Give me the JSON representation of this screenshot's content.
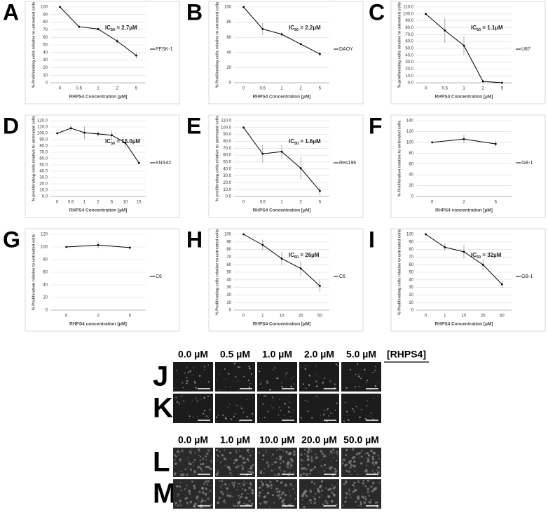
{
  "chart_data": [
    {
      "type": "line",
      "panel": "A",
      "title_parts": [
        "IC",
        "50",
        " = 2.7µM"
      ],
      "y_label": "% Proliferating cells relative to untreated cells",
      "x_label": "RHPS4 Concentration [µM]",
      "categories": [
        "0",
        "0.5",
        "1",
        "2",
        "5"
      ],
      "series": [
        {
          "name": "PFSK-1",
          "color": "#000000",
          "values": [
            100,
            74,
            71,
            55,
            36
          ],
          "errors": [
            0,
            0,
            0,
            4,
            4
          ]
        }
      ],
      "ylim": [
        0,
        100
      ],
      "yticks": [
        0,
        10,
        20,
        30,
        40,
        50,
        60,
        70,
        80,
        90,
        100
      ],
      "grid": true
    },
    {
      "type": "line",
      "panel": "B",
      "title_parts": [
        "IC",
        "50",
        " = 2.2µM"
      ],
      "y_label": "% Proliferating cells relative to untreated cells",
      "x_label": "RHPS4  Concentration [µM]",
      "categories": [
        "0",
        "0.5",
        "1",
        "2",
        "5"
      ],
      "series": [
        {
          "name": "DAOY",
          "color": "#000000",
          "values": [
            100,
            71,
            64,
            51,
            38
          ],
          "errors": [
            0,
            8,
            3,
            0,
            3
          ]
        }
      ],
      "ylim": [
        0,
        100
      ],
      "yticks": [
        0,
        20,
        40,
        60,
        80,
        100
      ],
      "grid": true
    },
    {
      "type": "line",
      "panel": "C",
      "title_parts": [
        "IC",
        "50",
        " = 1.1µM"
      ],
      "y_label": "% proliferating cells relative to untreated cells",
      "x_label": "RHPS4 Concentration [µM]",
      "categories": [
        "0",
        "0.5",
        "1",
        "2",
        "5"
      ],
      "series": [
        {
          "name": "U87",
          "color": "#000000",
          "values": [
            100,
            76,
            54,
            2,
            0
          ],
          "errors": [
            0,
            18,
            14,
            2,
            1
          ]
        }
      ],
      "ylim": [
        0,
        110
      ],
      "yticks": [
        {
          "value": 0,
          "label": "0.0"
        },
        {
          "value": 10,
          "label": "10.0"
        },
        {
          "value": 20,
          "label": "20.0"
        },
        {
          "value": 30,
          "label": "30.0"
        },
        {
          "value": 40,
          "label": "40.0"
        },
        {
          "value": 50,
          "label": "50.0"
        },
        {
          "value": 60,
          "label": "60.0"
        },
        {
          "value": 70,
          "label": "70.0"
        },
        {
          "value": 80,
          "label": "80.0"
        },
        {
          "value": 90,
          "label": "90.0"
        },
        {
          "value": 100,
          "label": "100.0"
        },
        {
          "value": 110,
          "label": "110.0"
        }
      ],
      "grid": true
    },
    {
      "type": "line",
      "panel": "D",
      "title_parts": [
        "IC",
        "50",
        " = 15.0µM"
      ],
      "y_label": "% proliferating cells relative to untreated cells",
      "x_label": "RHPS4 Concentration [µM]",
      "categories": [
        "0",
        "0.5",
        "1",
        "2",
        "5",
        "10",
        "15"
      ],
      "series": [
        {
          "name": "KNS42",
          "color": "#000000",
          "values": [
            100,
            108,
            101,
            99,
            97,
            85,
            53
          ],
          "errors": [
            0,
            5,
            10,
            4,
            8,
            8,
            0
          ]
        }
      ],
      "ylim": [
        0,
        120
      ],
      "yticks": [
        {
          "value": 0,
          "label": "0.0"
        },
        {
          "value": 10,
          "label": "10.0"
        },
        {
          "value": 20,
          "label": "20.0"
        },
        {
          "value": 30,
          "label": "30.0"
        },
        {
          "value": 40,
          "label": "40.0"
        },
        {
          "value": 50,
          "label": "50.0"
        },
        {
          "value": 60,
          "label": "60.0"
        },
        {
          "value": 70,
          "label": "70.0"
        },
        {
          "value": 80,
          "label": "80.0"
        },
        {
          "value": 90,
          "label": "90.0"
        },
        {
          "value": 100,
          "label": "100.0"
        },
        {
          "value": 110,
          "label": "110.0"
        },
        {
          "value": 120,
          "label": "120.0"
        }
      ],
      "grid": true
    },
    {
      "type": "line",
      "panel": "E",
      "title_parts": [
        "IC",
        "50",
        " = 1.6µM"
      ],
      "y_label": "% proliferating cells relative to untreated cells",
      "x_label": "RHPS4 Concentration [µM]",
      "categories": [
        "0",
        "0.5",
        "1",
        "2",
        "5"
      ],
      "series": [
        {
          "name": "Res196",
          "color": "#000000",
          "values": [
            100,
            62,
            65,
            41,
            8
          ],
          "errors": [
            0,
            13,
            10,
            16,
            6
          ]
        }
      ],
      "ylim": [
        0,
        110
      ],
      "yticks": [
        {
          "value": 0,
          "label": "0.0"
        },
        {
          "value": 10,
          "label": "10.0"
        },
        {
          "value": 20,
          "label": "20.0"
        },
        {
          "value": 30,
          "label": "30.0"
        },
        {
          "value": 40,
          "label": "40.0"
        },
        {
          "value": 50,
          "label": "50.0"
        },
        {
          "value": 60,
          "label": "60.0"
        },
        {
          "value": 70,
          "label": "70.0"
        },
        {
          "value": 80,
          "label": "80.0"
        },
        {
          "value": 90,
          "label": "90.0"
        },
        {
          "value": 100,
          "label": "100.0"
        },
        {
          "value": 110,
          "label": "110.0"
        }
      ],
      "grid": true
    },
    {
      "type": "line",
      "panel": "F",
      "y_label": "% Proliferation relative to untreated cells",
      "x_label": "RHPS4 concentration [µM]",
      "categories": [
        "0",
        "2",
        "5"
      ],
      "series": [
        {
          "name": "GB-1",
          "color": "#000000",
          "values": [
            100,
            106,
            97
          ],
          "errors": [
            0,
            8,
            6
          ]
        }
      ],
      "ylim": [
        0,
        140
      ],
      "yticks": [
        0,
        20,
        40,
        60,
        80,
        100,
        120,
        140
      ],
      "grid": true
    },
    {
      "type": "line",
      "panel": "G",
      "y_label": "% Proliferation relative to untreated cells",
      "x_label": "RHPS4 concentration [µM]",
      "categories": [
        "0",
        "2",
        "5"
      ],
      "series": [
        {
          "name": "C6",
          "color": "#000000",
          "values": [
            100,
            103,
            99
          ],
          "errors": [
            0,
            5,
            3
          ]
        }
      ],
      "ylim": [
        0,
        120
      ],
      "yticks": [
        0,
        20,
        40,
        60,
        80,
        100,
        120
      ],
      "grid": true
    },
    {
      "type": "line",
      "panel": "H",
      "title_parts": [
        "IC",
        "50",
        " = 26µM"
      ],
      "y_label": "% Proliferating cells relative to untreated cells",
      "x_label": "RHPS4 Concentration [µM]",
      "categories": [
        "0",
        "1",
        "10",
        "20",
        "50"
      ],
      "series": [
        {
          "name": "C6",
          "color": "#000000",
          "values": [
            100,
            86,
            68,
            55,
            32
          ],
          "errors": [
            0,
            7,
            9,
            10,
            8
          ]
        }
      ],
      "ylim": [
        0,
        100
      ],
      "yticks": [
        0,
        10,
        20,
        30,
        40,
        50,
        60,
        70,
        80,
        90,
        100
      ],
      "grid": true
    },
    {
      "type": "line",
      "panel": "I",
      "title_parts": [
        "IC",
        "50",
        " = 32µM"
      ],
      "y_label": "% Proliferating cells relative to untreated cells",
      "x_label": "RHPS4 Concentration [µM]",
      "categories": [
        "0",
        "1",
        "10",
        "20",
        "50"
      ],
      "series": [
        {
          "name": "GB-1",
          "color": "#000000",
          "values": [
            100,
            83,
            77,
            60,
            34
          ],
          "errors": [
            0,
            5,
            9,
            7,
            5
          ]
        }
      ],
      "ylim": [
        0,
        100
      ],
      "yticks": [
        0,
        10,
        20,
        30,
        40,
        50,
        60,
        70,
        80,
        90,
        100
      ],
      "grid": true
    }
  ],
  "micrographs": {
    "label": "[RHPS4]",
    "groups": [
      {
        "columns": [
          "0.0 µM",
          "0.5 µM",
          "1.0 µM",
          "2.0 µM",
          "5.0 µM"
        ],
        "rows": [
          "J",
          "K"
        ]
      },
      {
        "columns": [
          "0.0 µM",
          "1.0 µM",
          "10.0 µM",
          "20.0 µM",
          "50.0 µM"
        ],
        "rows": [
          "L",
          "M"
        ]
      }
    ]
  }
}
